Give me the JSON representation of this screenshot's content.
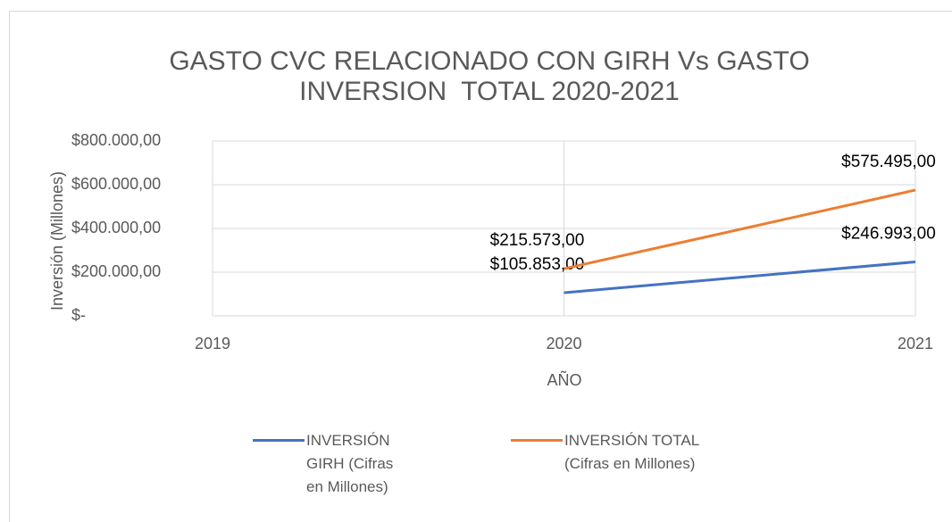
{
  "chart_data": {
    "type": "line",
    "title": "GASTO CVC RELACIONADO CON GIRH Vs GASTO INVERSION  TOTAL 2020-2021",
    "x_label": "AÑO",
    "y_label": "Inversión (Millones)",
    "x": [
      2019,
      2020,
      2021
    ],
    "xlim": [
      2019,
      2021
    ],
    "xticks": [
      2019,
      2020,
      2021
    ],
    "ylim": [
      0,
      800000
    ],
    "yticks": [
      {
        "value": 0,
        "label": "$-"
      },
      {
        "value": 200000,
        "label": "$200.000,00"
      },
      {
        "value": 400000,
        "label": "$400.000,00"
      },
      {
        "value": 600000,
        "label": "$600.000,00"
      },
      {
        "value": 800000,
        "label": "$800.000,00"
      }
    ],
    "grid": true,
    "legend": "bottom",
    "series": [
      {
        "name": "INVERSIÓN GIRH (Cifras en Millones)",
        "color": "#4472c4",
        "values": [
          null,
          105853,
          246993
        ],
        "value_labels": [
          null,
          "$105.853,00",
          "$246.993,00"
        ]
      },
      {
        "name": "INVERSIÓN TOTAL (Cifras en Millones)",
        "color": "#ed7d31",
        "values": [
          null,
          215573,
          575495
        ],
        "value_labels": [
          null,
          "$215.573,00",
          "$575.495,00"
        ]
      }
    ]
  }
}
